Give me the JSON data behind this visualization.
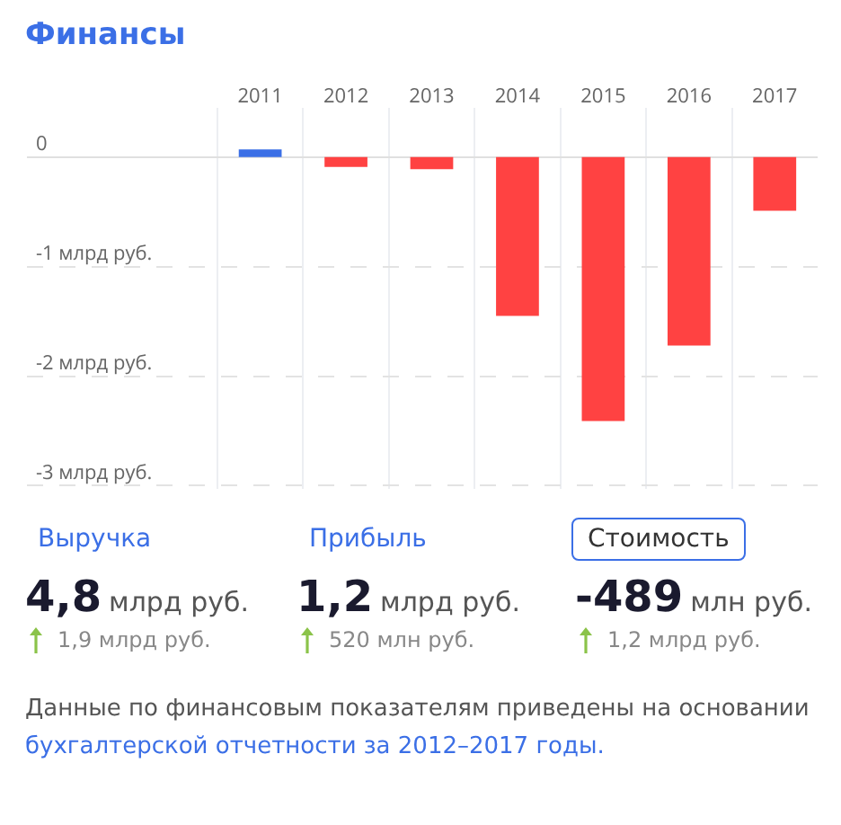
{
  "chart_data": [
    {
      "type": "bar",
      "title": "Финансы",
      "categories": [
        "2011",
        "2012",
        "2013",
        "2014",
        "2015",
        "2016",
        "2017"
      ],
      "values": [
        0.07,
        -0.09,
        -0.11,
        -1.45,
        -2.41,
        -1.72,
        -0.49
      ],
      "colors": [
        "#3b6fe6",
        "#ff4242",
        "#ff4242",
        "#ff4242",
        "#ff4242",
        "#ff4242",
        "#ff4242"
      ],
      "ylim": [
        -3.03,
        0.45
      ],
      "yticks": [
        0,
        {
          "value": -1,
          "label": "-1 млрд руб."
        },
        {
          "value": -2,
          "label": "-2 млрд руб."
        },
        {
          "value": -3,
          "label": "-3 млрд руб."
        }
      ],
      "grid": "y"
    },
    {
      "type": "other",
      "categories": [
        "Выручка",
        "Прибыль",
        "Стоимость"
      ],
      "value_labels": [
        "4,8 млрд руб.",
        "1,2 млрд руб.",
        "-489 млн руб."
      ],
      "annotations": [
        "1,9 млрд руб.",
        "520 млн руб.",
        "1,2 млрд руб.",
        "Данные по финансовым показателям приведены на основании ",
        "бухгалтерской отчетности за 2012–2017 годы."
      ]
    }
  ]
}
